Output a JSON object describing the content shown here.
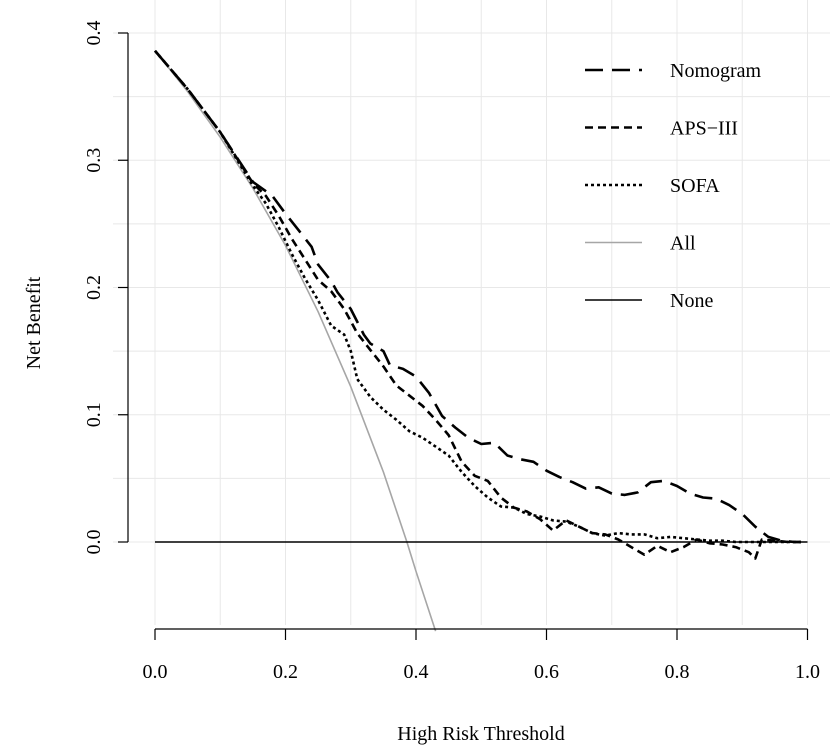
{
  "chart_data": {
    "type": "line",
    "title": "",
    "xlabel": "High Risk Threshold",
    "ylabel": "Net Benefit",
    "xlim": [
      0.0,
      1.0
    ],
    "ylim": [
      -0.07,
      0.4
    ],
    "x_ticks": [
      "0.0",
      "0.2",
      "0.4",
      "0.6",
      "0.8",
      "1.0"
    ],
    "y_ticks": [
      "0.0",
      "0.1",
      "0.2",
      "0.3",
      "0.4"
    ],
    "grid": true,
    "legend_position": "top-right",
    "series": [
      {
        "name": "Nomogram",
        "style": "longdash",
        "color": "#000000",
        "points": [
          [
            0.0,
            0.386
          ],
          [
            0.05,
            0.356
          ],
          [
            0.1,
            0.322
          ],
          [
            0.15,
            0.283
          ],
          [
            0.18,
            0.272
          ],
          [
            0.2,
            0.258
          ],
          [
            0.22,
            0.245
          ],
          [
            0.24,
            0.232
          ],
          [
            0.25,
            0.218
          ],
          [
            0.27,
            0.205
          ],
          [
            0.28,
            0.196
          ],
          [
            0.3,
            0.183
          ],
          [
            0.32,
            0.163
          ],
          [
            0.33,
            0.156
          ],
          [
            0.35,
            0.15
          ],
          [
            0.36,
            0.139
          ],
          [
            0.38,
            0.136
          ],
          [
            0.4,
            0.13
          ],
          [
            0.42,
            0.117
          ],
          [
            0.44,
            0.099
          ],
          [
            0.46,
            0.09
          ],
          [
            0.48,
            0.082
          ],
          [
            0.5,
            0.077
          ],
          [
            0.52,
            0.078
          ],
          [
            0.54,
            0.068
          ],
          [
            0.56,
            0.065
          ],
          [
            0.58,
            0.063
          ],
          [
            0.6,
            0.056
          ],
          [
            0.62,
            0.051
          ],
          [
            0.64,
            0.047
          ],
          [
            0.66,
            0.042
          ],
          [
            0.68,
            0.043
          ],
          [
            0.7,
            0.038
          ],
          [
            0.72,
            0.037
          ],
          [
            0.74,
            0.039
          ],
          [
            0.76,
            0.047
          ],
          [
            0.78,
            0.048
          ],
          [
            0.8,
            0.044
          ],
          [
            0.82,
            0.038
          ],
          [
            0.84,
            0.035
          ],
          [
            0.86,
            0.034
          ],
          [
            0.88,
            0.029
          ],
          [
            0.9,
            0.022
          ],
          [
            0.92,
            0.012
          ],
          [
            0.94,
            0.004
          ],
          [
            0.96,
            0.001
          ],
          [
            0.98,
            0.0
          ],
          [
            0.99,
            0.0
          ]
        ]
      },
      {
        "name": "APS−III",
        "style": "dashed",
        "color": "#000000",
        "points": [
          [
            0.0,
            0.386
          ],
          [
            0.05,
            0.356
          ],
          [
            0.1,
            0.322
          ],
          [
            0.15,
            0.282
          ],
          [
            0.17,
            0.272
          ],
          [
            0.19,
            0.256
          ],
          [
            0.21,
            0.238
          ],
          [
            0.23,
            0.222
          ],
          [
            0.25,
            0.206
          ],
          [
            0.27,
            0.197
          ],
          [
            0.29,
            0.183
          ],
          [
            0.31,
            0.164
          ],
          [
            0.33,
            0.151
          ],
          [
            0.35,
            0.138
          ],
          [
            0.37,
            0.123
          ],
          [
            0.39,
            0.115
          ],
          [
            0.41,
            0.107
          ],
          [
            0.43,
            0.096
          ],
          [
            0.45,
            0.084
          ],
          [
            0.47,
            0.063
          ],
          [
            0.49,
            0.052
          ],
          [
            0.51,
            0.048
          ],
          [
            0.53,
            0.035
          ],
          [
            0.55,
            0.027
          ],
          [
            0.57,
            0.024
          ],
          [
            0.59,
            0.018
          ],
          [
            0.61,
            0.009
          ],
          [
            0.63,
            0.017
          ],
          [
            0.65,
            0.012
          ],
          [
            0.67,
            0.007
          ],
          [
            0.69,
            0.006
          ],
          [
            0.71,
            0.002
          ],
          [
            0.73,
            -0.004
          ],
          [
            0.75,
            -0.01
          ],
          [
            0.77,
            -0.003
          ],
          [
            0.79,
            -0.008
          ],
          [
            0.81,
            -0.004
          ],
          [
            0.83,
            0.002
          ],
          [
            0.85,
            -0.001
          ],
          [
            0.87,
            -0.002
          ],
          [
            0.89,
            -0.004
          ],
          [
            0.91,
            -0.008
          ],
          [
            0.92,
            -0.013
          ],
          [
            0.93,
            0.002
          ],
          [
            0.95,
            0.001
          ],
          [
            0.97,
            0.0
          ],
          [
            0.99,
            0.0
          ]
        ]
      },
      {
        "name": "SOFA",
        "style": "dotted",
        "color": "#000000",
        "points": [
          [
            0.0,
            0.386
          ],
          [
            0.05,
            0.356
          ],
          [
            0.1,
            0.322
          ],
          [
            0.15,
            0.28
          ],
          [
            0.17,
            0.266
          ],
          [
            0.19,
            0.247
          ],
          [
            0.21,
            0.226
          ],
          [
            0.23,
            0.207
          ],
          [
            0.25,
            0.19
          ],
          [
            0.27,
            0.17
          ],
          [
            0.29,
            0.163
          ],
          [
            0.3,
            0.15
          ],
          [
            0.31,
            0.128
          ],
          [
            0.33,
            0.114
          ],
          [
            0.35,
            0.104
          ],
          [
            0.37,
            0.096
          ],
          [
            0.39,
            0.087
          ],
          [
            0.41,
            0.082
          ],
          [
            0.43,
            0.075
          ],
          [
            0.45,
            0.068
          ],
          [
            0.47,
            0.055
          ],
          [
            0.49,
            0.044
          ],
          [
            0.51,
            0.035
          ],
          [
            0.53,
            0.028
          ],
          [
            0.55,
            0.027
          ],
          [
            0.57,
            0.022
          ],
          [
            0.59,
            0.02
          ],
          [
            0.61,
            0.017
          ],
          [
            0.63,
            0.016
          ],
          [
            0.65,
            0.012
          ],
          [
            0.67,
            0.007
          ],
          [
            0.69,
            0.005
          ],
          [
            0.71,
            0.007
          ],
          [
            0.73,
            0.006
          ],
          [
            0.75,
            0.006
          ],
          [
            0.77,
            0.003
          ],
          [
            0.79,
            0.004
          ],
          [
            0.81,
            0.003
          ],
          [
            0.83,
            0.002
          ],
          [
            0.85,
            0.001
          ],
          [
            0.87,
            0.001
          ],
          [
            0.89,
            0.0
          ],
          [
            0.91,
            0.0
          ],
          [
            0.93,
            0.0
          ],
          [
            0.95,
            0.0
          ],
          [
            0.97,
            0.0
          ],
          [
            0.99,
            0.0
          ]
        ]
      },
      {
        "name": "All",
        "style": "solid",
        "color": "#a6a6a6",
        "points": [
          [
            0.0,
            0.386
          ],
          [
            0.05,
            0.354
          ],
          [
            0.1,
            0.318
          ],
          [
            0.15,
            0.278
          ],
          [
            0.2,
            0.233
          ],
          [
            0.25,
            0.181
          ],
          [
            0.3,
            0.122
          ],
          [
            0.35,
            0.055
          ],
          [
            0.386,
            0.0
          ],
          [
            0.4,
            -0.023
          ],
          [
            0.43,
            -0.07
          ]
        ]
      },
      {
        "name": "None",
        "style": "solid",
        "color": "#000000",
        "points": [
          [
            0.0,
            0.0
          ],
          [
            1.0,
            0.0
          ]
        ]
      }
    ]
  }
}
